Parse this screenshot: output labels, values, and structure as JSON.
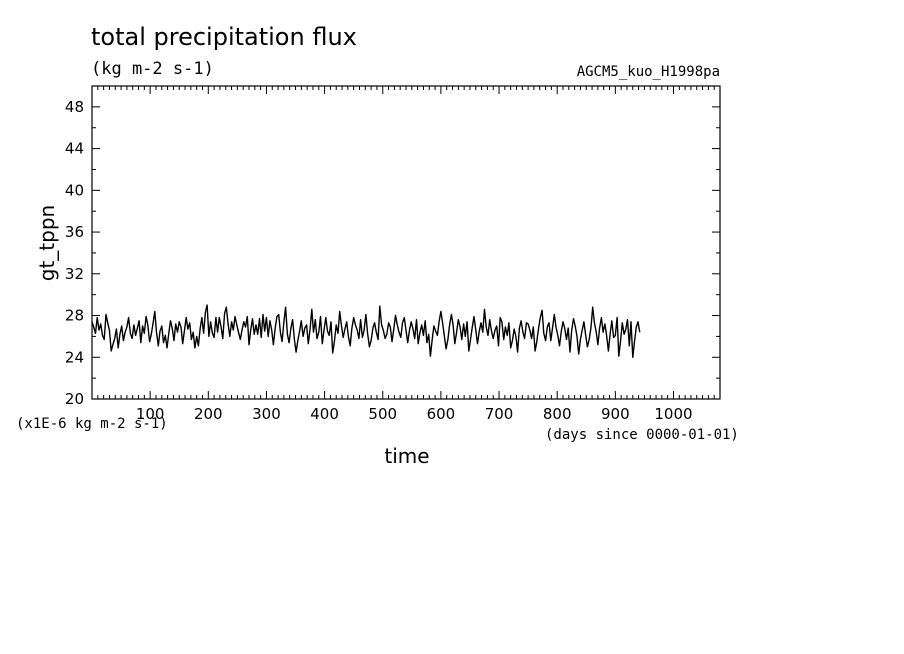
{
  "chart_data": {
    "type": "line",
    "title": "total precipitation flux",
    "subtitle": "(kg m-2 s-1)",
    "dataset_label": "AGCM5_kuo_H1998pa",
    "xlabel": "time",
    "x_unit_label": "(days since 0000-01-01)",
    "ylabel": "gt_tppn",
    "y_unit_label": "(x1E-6 kg m-2 s-1)",
    "xlim": [
      0,
      1080
    ],
    "ylim": [
      20,
      50
    ],
    "x_ticks": [
      100,
      200,
      300,
      400,
      500,
      600,
      700,
      800,
      900,
      1000
    ],
    "x_tick_labels": [
      "100",
      "200",
      "300",
      "400",
      "500",
      "600",
      "700",
      "800",
      "900",
      "1000"
    ],
    "y_ticks": [
      20,
      24,
      28,
      32,
      36,
      40,
      44,
      48
    ],
    "y_tick_labels": [
      "20",
      "24",
      "28",
      "32",
      "36",
      "40",
      "44",
      "48"
    ],
    "grid": false,
    "legend": "none",
    "series": [
      {
        "color": "#000000",
        "x_start": 0,
        "x_step": 3,
        "values": [
          27.4,
          26.9,
          26.3,
          27.8,
          26.6,
          27.2,
          26.1,
          25.7,
          28.1,
          27.3,
          26.6,
          24.6,
          25.2,
          25.8,
          26.7,
          24.9,
          26.2,
          27.0,
          25.6,
          26.4,
          26.9,
          27.8,
          26.3,
          25.8,
          27.1,
          26.1,
          26.8,
          27.5,
          25.4,
          27.0,
          26.3,
          27.9,
          27.1,
          25.5,
          26.2,
          27.3,
          28.4,
          26.4,
          25.1,
          26.5,
          27.0,
          25.4,
          26.1,
          24.9,
          26.3,
          27.5,
          26.8,
          25.6,
          27.2,
          26.4,
          27.4,
          26.9,
          25.3,
          26.6,
          27.8,
          26.7,
          27.3,
          25.7,
          26.4,
          24.9,
          26.0,
          25.1,
          26.8,
          27.8,
          26.3,
          28.3,
          29.0,
          26.0,
          27.4,
          26.3,
          25.9,
          27.8,
          26.4,
          27.8,
          26.9,
          25.8,
          28.2,
          28.8,
          27.2,
          26.0,
          27.4,
          26.6,
          27.9,
          27.1,
          26.4,
          25.7,
          26.6,
          27.4,
          26.9,
          27.9,
          25.2,
          26.6,
          27.7,
          26.2,
          27.1,
          26.2,
          27.7,
          25.9,
          28.1,
          26.5,
          27.8,
          26.0,
          27.5,
          26.6,
          25.2,
          26.8,
          27.9,
          28.1,
          26.4,
          25.5,
          27.4,
          28.8,
          26.2,
          25.4,
          26.8,
          27.6,
          25.7,
          24.5,
          25.6,
          26.5,
          27.5,
          26.0,
          26.8,
          27.1,
          25.3,
          26.7,
          28.6,
          26.4,
          27.6,
          25.8,
          26.4,
          27.9,
          25.3,
          26.6,
          27.8,
          26.5,
          26.1,
          27.4,
          24.4,
          25.6,
          27.1,
          26.3,
          28.4,
          27.0,
          25.9,
          26.7,
          27.4,
          26.0,
          25.1,
          26.8,
          27.8,
          27.1,
          26.6,
          25.8,
          27.6,
          25.9,
          26.6,
          28.1,
          26.3,
          25.0,
          25.6,
          26.8,
          27.3,
          26.4,
          25.7,
          28.9,
          27.1,
          26.6,
          25.8,
          26.2,
          27.3,
          26.9,
          25.5,
          26.7,
          28.0,
          27.1,
          26.4,
          25.9,
          27.3,
          27.8,
          26.6,
          25.4,
          26.6,
          27.4,
          26.7,
          25.8,
          27.6,
          25.3,
          26.4,
          27.1,
          26.1,
          27.5,
          25.4,
          26.2,
          24.1,
          25.7,
          27.0,
          26.5,
          26.1,
          27.4,
          28.4,
          27.3,
          26.0,
          24.8,
          25.7,
          27.1,
          28.1,
          27.1,
          25.3,
          26.4,
          27.6,
          26.9,
          25.7,
          27.2,
          26.0,
          27.4,
          24.6,
          25.7,
          26.9,
          27.9,
          26.6,
          25.3,
          26.5,
          27.3,
          26.4,
          28.6,
          26.9,
          26.1,
          27.6,
          26.5,
          25.8,
          26.6,
          27.0,
          25.1,
          27.8,
          27.4,
          25.7,
          26.9,
          26.1,
          27.3,
          24.9,
          25.6,
          26.7,
          26.0,
          24.5,
          26.8,
          27.5,
          26.4,
          25.8,
          27.3,
          27.2,
          26.6,
          25.8,
          26.9,
          24.6,
          25.5,
          26.8,
          27.8,
          28.5,
          26.3,
          25.6,
          26.9,
          27.3,
          25.6,
          26.8,
          28.1,
          26.9,
          26.1,
          25.1,
          26.5,
          27.4,
          26.8,
          25.7,
          26.8,
          24.5,
          26.6,
          27.7,
          27.0,
          26.0,
          24.3,
          25.7,
          26.6,
          27.4,
          26.1,
          25.0,
          25.7,
          26.8,
          28.8,
          27.3,
          26.5,
          25.2,
          26.8,
          27.8,
          26.4,
          27.2,
          26.1,
          24.6,
          26.2,
          27.5,
          25.9,
          26.1,
          27.8,
          24.1,
          25.6,
          27.3,
          26.2,
          26.7,
          27.6,
          25.1,
          27.4,
          24.0,
          25.5,
          26.9,
          27.4,
          26.4
        ]
      }
    ]
  }
}
